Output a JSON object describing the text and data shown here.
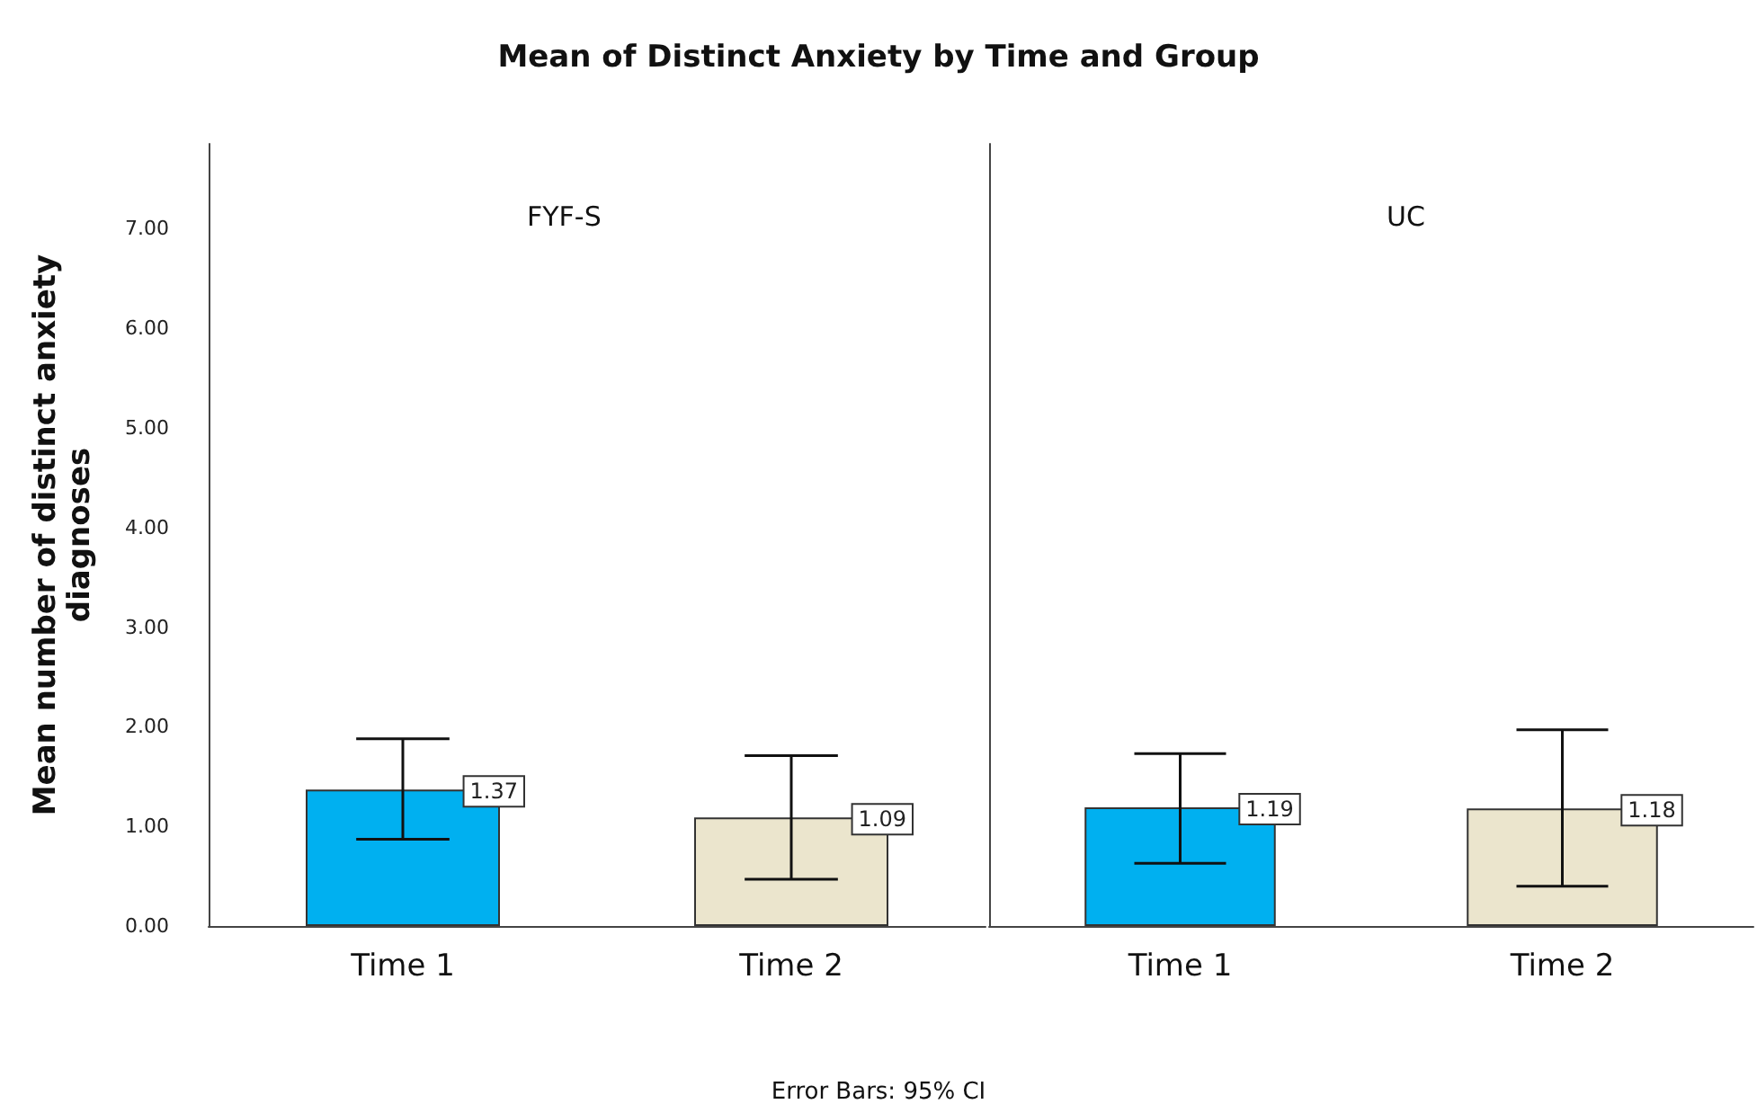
{
  "chart_data": [
    {
      "type": "bar",
      "title": "Mean of Distinct Anxiety by Time and Group",
      "subtitle": "FYF-S",
      "ylabel": "Mean number of distinct anxiety\ndiagnoses",
      "annotations": [
        "Error Bars: 95% CI"
      ],
      "categories": [
        "Time 1",
        "Time 2"
      ],
      "values": [
        1.37,
        1.09
      ],
      "colors": [
        "#00b0f0",
        "#ebe5cd"
      ],
      "errors": [
        [
          0.87,
          1.88
        ],
        [
          0.47,
          1.71
        ]
      ],
      "data_labels": true,
      "ylim": [
        0,
        7.85
      ],
      "yticks": [
        {
          "value": 0,
          "label": "0.00"
        },
        {
          "value": 1,
          "label": "1.00"
        },
        {
          "value": 2,
          "label": "2.00"
        },
        {
          "value": 3,
          "label": "3.00"
        },
        {
          "value": 4,
          "label": "4.00"
        },
        {
          "value": 5,
          "label": "5.00"
        },
        {
          "value": 6,
          "label": "6.00"
        },
        {
          "value": 7,
          "label": "7.00"
        }
      ],
      "grid": false
    },
    {
      "type": "bar",
      "subtitle": "UC",
      "categories": [
        "Time 1",
        "Time 2"
      ],
      "values": [
        1.19,
        1.18
      ],
      "colors": [
        "#00b0f0",
        "#ebe5cd"
      ],
      "errors": [
        [
          0.63,
          1.73
        ],
        [
          0.4,
          1.97
        ]
      ],
      "data_labels": true,
      "ylim": [
        0,
        7.85
      ],
      "tick_labels": "x",
      "grid": false
    }
  ]
}
